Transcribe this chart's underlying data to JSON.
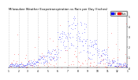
{
  "title": "Milwaukee Weather Evapotranspiration vs Rain per Day (Inches)",
  "title_fontsize": 2.8,
  "background": "#ffffff",
  "plot_bg": "#ffffff",
  "legend_et": "ET",
  "legend_rain": "Rain",
  "et_color": "#0000ff",
  "rain_color": "#ff0000",
  "ylim": [
    0,
    0.55
  ],
  "yticks": [
    0.0,
    0.1,
    0.2,
    0.3,
    0.4,
    0.5
  ],
  "ytick_labels": [
    ".0",
    ".1",
    ".2",
    ".3",
    ".4",
    ".5"
  ],
  "xlim": [
    0,
    365
  ],
  "month_positions": [
    0,
    31,
    59,
    90,
    120,
    151,
    181,
    212,
    243,
    273,
    304,
    334,
    365
  ],
  "month_labels": [
    "1",
    "2",
    "3",
    "4",
    "5",
    "6",
    "7",
    "8",
    "9",
    "10",
    "11",
    "12",
    "1"
  ],
  "seed": 1234
}
